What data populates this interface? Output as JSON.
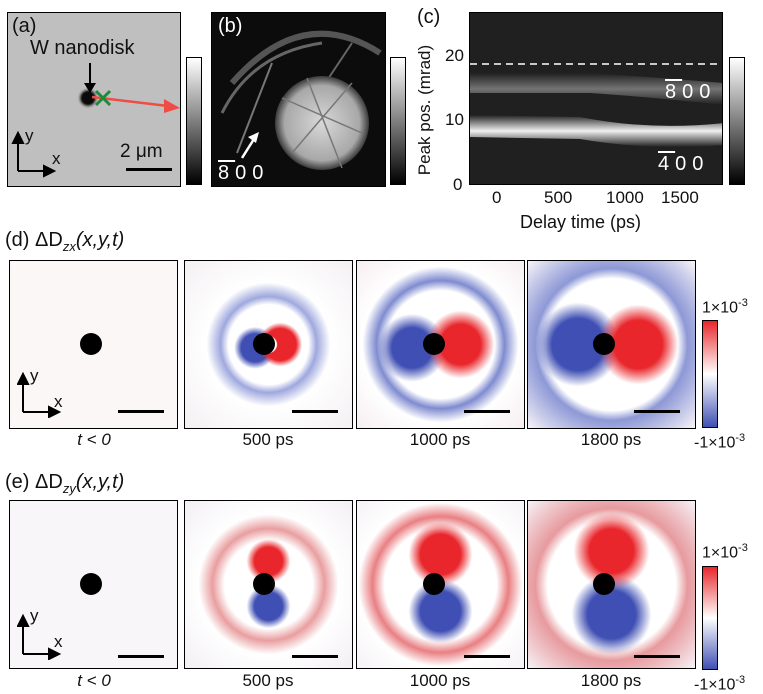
{
  "panel_a": {
    "label": "(a)",
    "title": "W nanodisk",
    "scale": "2 μm",
    "axis_x": "x",
    "axis_y": "y"
  },
  "panel_b": {
    "label": "(b)",
    "reflection": "800"
  },
  "panel_c": {
    "label": "(c)",
    "ylabel": "Peak pos. (mrad)",
    "xlabel": "Delay time (ps)",
    "yticks": [
      "0",
      "10",
      "20"
    ],
    "xticks": [
      "0",
      "500",
      "1000",
      "1500"
    ],
    "band_top": "800",
    "band_bottom": "400"
  },
  "row_d": {
    "label_prefix": "(d) ΔD",
    "subscript": "zx",
    "args": "(x,y,t)",
    "axis_x": "x",
    "axis_y": "y",
    "captions": [
      "t < 0",
      "500 ps",
      "1000 ps",
      "1800 ps"
    ],
    "cbar_max": "1×10",
    "cbar_min": "-1×10",
    "cbar_exp": "-3"
  },
  "row_e": {
    "label_prefix": "(e) ΔD",
    "subscript": "zy",
    "args": "(x,y,t)",
    "axis_x": "x",
    "axis_y": "y",
    "captions": [
      "t < 0",
      "500 ps",
      "1000 ps",
      "1800 ps"
    ],
    "cbar_max": "1×10",
    "cbar_min": "-1×10",
    "cbar_exp": "-3"
  },
  "colors": {
    "positive": "#e8262b",
    "negative": "#3f4fb3",
    "arrow": "#ef4c46",
    "cross": "#1f8a3a"
  }
}
